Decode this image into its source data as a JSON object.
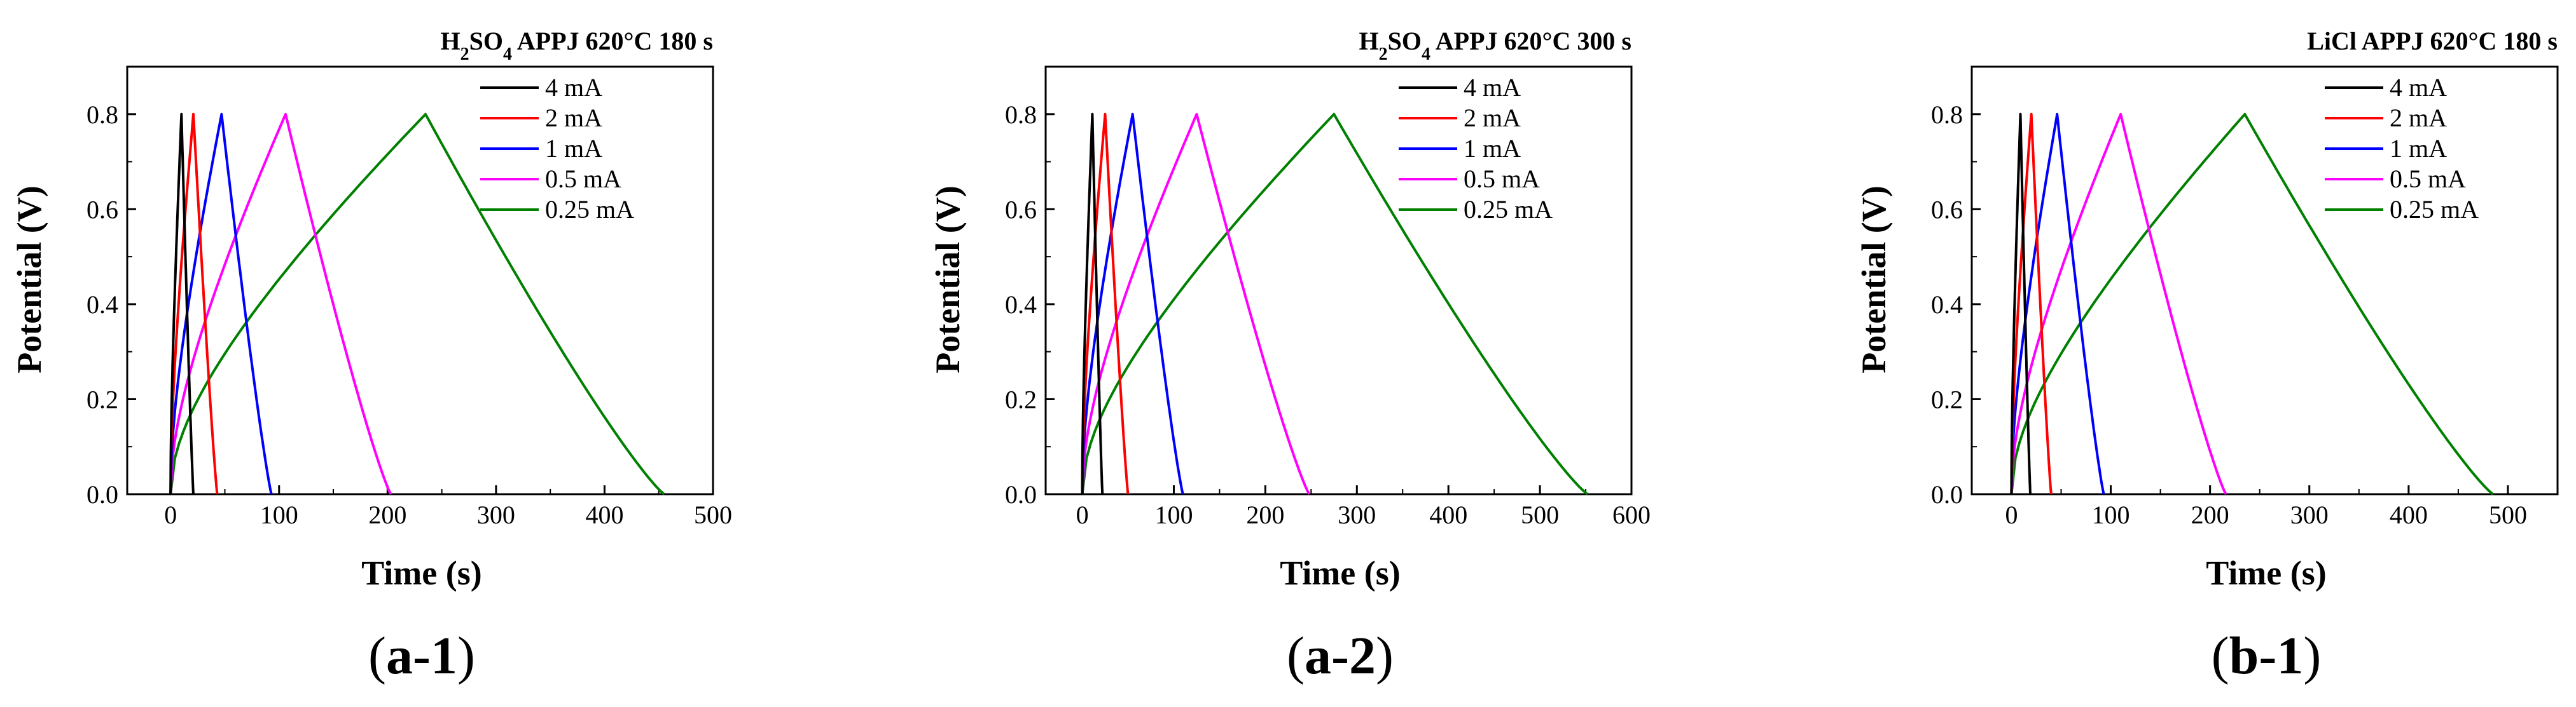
{
  "figure": {
    "legend_labels": [
      "4 mA",
      "2 mA",
      "1 mA",
      "0.5 mA",
      "0.25 mA"
    ],
    "series_colors": [
      "#000000",
      "#ff0000",
      "#0000ff",
      "#ff00ff",
      "#008000"
    ]
  },
  "chart_data": [
    {
      "type": "line",
      "panel_label": "a-1",
      "title": {
        "pre": "H",
        "sub1": "2",
        "mid": "SO",
        "sub2": "4",
        "post": "  APPJ 620°C 180 s"
      },
      "xlabel": "Time (s)",
      "ylabel": "Potential (V)",
      "xlim": [
        -40,
        500
      ],
      "ylim": [
        0,
        0.9
      ],
      "xticks": [
        0,
        100,
        200,
        300,
        400,
        500
      ],
      "yticks": [
        0.0,
        0.2,
        0.4,
        0.6,
        0.8
      ],
      "series": [
        {
          "name": "4 mA",
          "charge_end": 10,
          "discharge_end": 21
        },
        {
          "name": "2 mA",
          "charge_end": 21,
          "discharge_end": 43
        },
        {
          "name": "1 mA",
          "charge_end": 47,
          "discharge_end": 93
        },
        {
          "name": "0.5 mA",
          "charge_end": 106,
          "discharge_end": 203
        },
        {
          "name": "0.25 mA",
          "charge_end": 235,
          "discharge_end": 455
        }
      ]
    },
    {
      "type": "line",
      "panel_label": "a-2",
      "title": {
        "pre": "H",
        "sub1": "2",
        "mid": "SO",
        "sub2": "4",
        "post": "  APPJ 620°C 300 s"
      },
      "xlabel": "Time (s)",
      "ylabel": "Potential (V)",
      "xlim": [
        -40,
        600
      ],
      "ylim": [
        0,
        0.9
      ],
      "xticks": [
        0,
        100,
        200,
        300,
        400,
        500,
        600
      ],
      "yticks": [
        0.0,
        0.2,
        0.4,
        0.6,
        0.8
      ],
      "series": [
        {
          "name": "4 mA",
          "charge_end": 11,
          "discharge_end": 22
        },
        {
          "name": "2 mA",
          "charge_end": 25,
          "discharge_end": 50
        },
        {
          "name": "1 mA",
          "charge_end": 55,
          "discharge_end": 110
        },
        {
          "name": "0.5 mA",
          "charge_end": 125,
          "discharge_end": 248
        },
        {
          "name": "0.25 mA",
          "charge_end": 275,
          "discharge_end": 552
        }
      ]
    },
    {
      "type": "line",
      "panel_label": "b-1",
      "title": {
        "pre": "LiCl  APPJ 620°C 180 s",
        "sub1": "",
        "mid": "",
        "sub2": "",
        "post": ""
      },
      "xlabel": "Time (s)",
      "ylabel": "Potential (V)",
      "xlim": [
        -40,
        550
      ],
      "ylim": [
        0,
        0.9
      ],
      "xticks": [
        0,
        100,
        200,
        300,
        400,
        500
      ],
      "yticks": [
        0.0,
        0.2,
        0.4,
        0.6,
        0.8
      ],
      "series": [
        {
          "name": "4 mA",
          "charge_end": 9,
          "discharge_end": 19
        },
        {
          "name": "2 mA",
          "charge_end": 20,
          "discharge_end": 40
        },
        {
          "name": "1 mA",
          "charge_end": 46,
          "discharge_end": 93
        },
        {
          "name": "0.5 mA",
          "charge_end": 110,
          "discharge_end": 216
        },
        {
          "name": "0.25 mA",
          "charge_end": 235,
          "discharge_end": 485
        }
      ]
    }
  ]
}
